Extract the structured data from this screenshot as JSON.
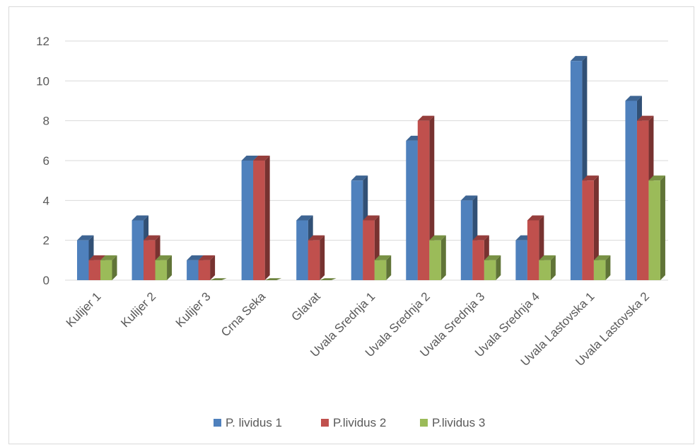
{
  "chart_data": {
    "type": "bar",
    "title": "",
    "xlabel": "",
    "ylabel": "",
    "ylim": [
      0,
      12
    ],
    "yticks": [
      0,
      2,
      4,
      6,
      8,
      10,
      12
    ],
    "grid": true,
    "legend_position": "bottom",
    "categories": [
      "Kulijer 1",
      "Kulijer 2",
      "Kulijer 3",
      "Crna Seka",
      "Glavat",
      "Uvala Srednja 1",
      "Uvala Srednja 2",
      "Uvala Srednja 3",
      "Uvala Srednja 4",
      "Uvala Lastovska 1",
      "Uvala Lastovska 2"
    ],
    "series": [
      {
        "name": "P. lividus 1",
        "color": "#4f81bd",
        "values": [
          2,
          3,
          1,
          6,
          3,
          5,
          7,
          4,
          2,
          11,
          9
        ]
      },
      {
        "name": "P.lividus 2",
        "color": "#c0504d",
        "values": [
          1,
          2,
          1,
          6,
          2,
          3,
          8,
          2,
          3,
          5,
          8
        ]
      },
      {
        "name": "P.lividus 3",
        "color": "#9bbb59",
        "values": [
          1,
          1,
          0,
          0,
          0,
          1,
          2,
          1,
          1,
          1,
          5
        ]
      }
    ]
  }
}
